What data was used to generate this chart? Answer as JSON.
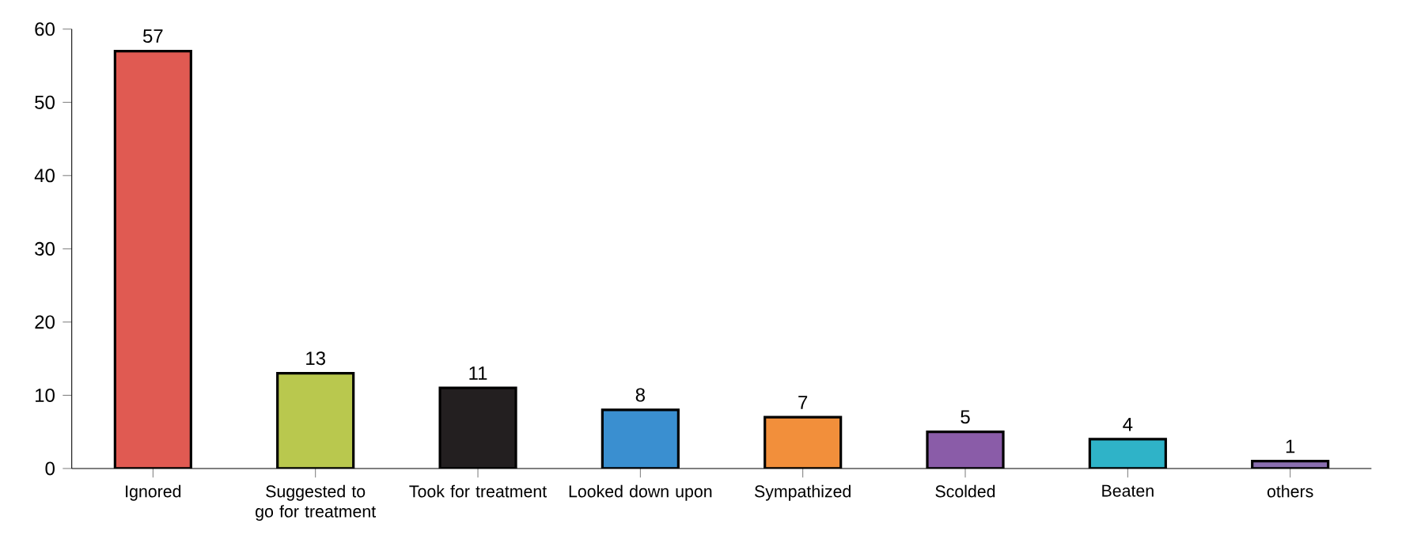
{
  "chart_data": {
    "type": "bar",
    "categories": [
      "Ignored",
      "Suggested to go for treatment",
      "Took for treatment",
      "Looked down upon",
      "Sympathized",
      "Scolded",
      "Beaten",
      "others"
    ],
    "values": [
      57,
      13,
      11,
      8,
      7,
      5,
      4,
      1
    ],
    "colors": [
      "#e05a52",
      "#b9c84e",
      "#231f20",
      "#3a8fd0",
      "#f28f3b",
      "#8a5ca8",
      "#2fb3c8",
      "#8a6fb0"
    ],
    "ylim": [
      0,
      60
    ],
    "yticks": [
      0,
      10,
      20,
      30,
      40,
      50,
      60
    ],
    "data_labels": true
  }
}
